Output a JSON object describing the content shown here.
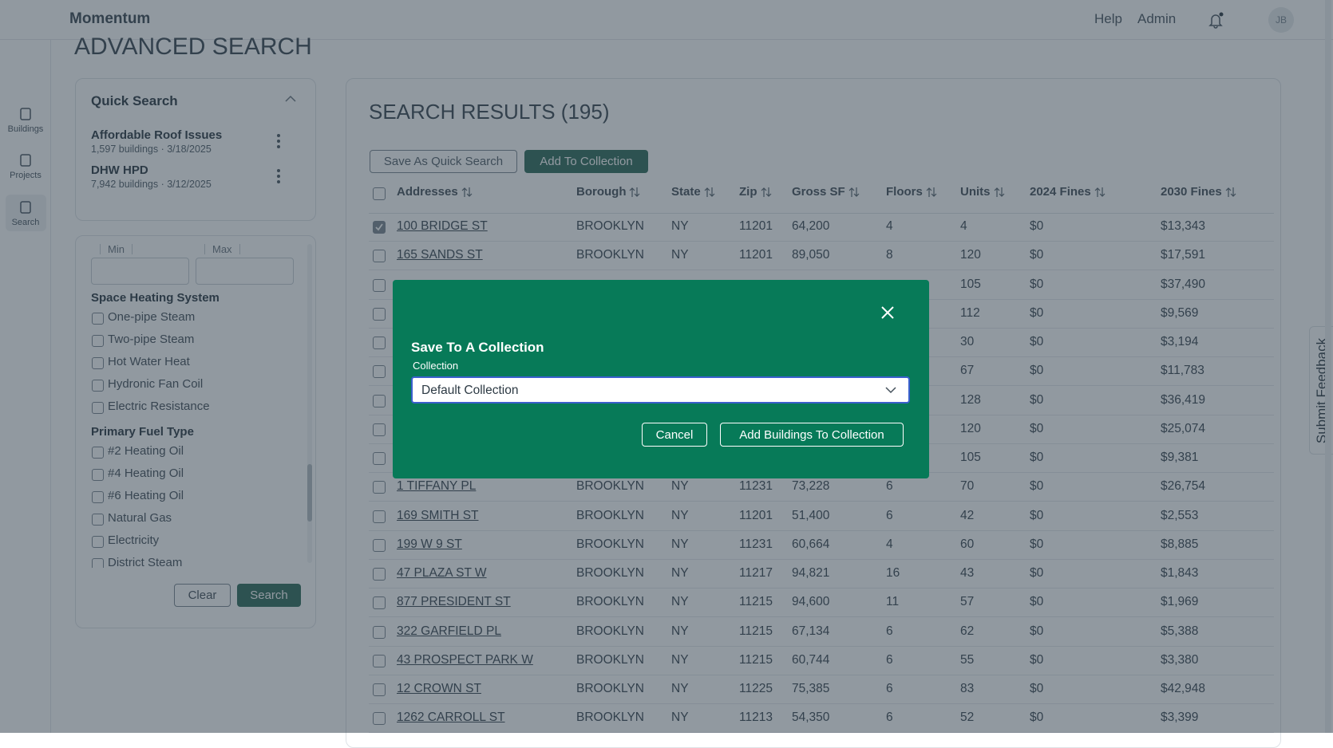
{
  "header": {
    "brand": "Momentum",
    "links": [
      "Help",
      "Admin"
    ],
    "avatar": "JB"
  },
  "sidebar": [
    "Buildings",
    "Projects",
    "Search"
  ],
  "page_title": "ADVANCED SEARCH",
  "quick_search": {
    "title": "Quick Search",
    "items": [
      {
        "name": "Affordable Roof Issues",
        "meta": "1,597 buildings · 3/18/2025"
      },
      {
        "name": "DHW HPD",
        "meta": "7,942 buildings · 3/12/2025"
      }
    ]
  },
  "filters": {
    "min": "Min",
    "max": "Max",
    "groups": [
      {
        "title": "Space Heating System",
        "options": [
          "One-pipe Steam",
          "Two-pipe Steam",
          "Hot Water Heat",
          "Hydronic Fan Coil",
          "Electric Resistance"
        ]
      },
      {
        "title": "Primary Fuel Type",
        "options": [
          "#2 Heating Oil",
          "#4 Heating Oil",
          "#6 Heating Oil",
          "Natural Gas",
          "Electricity",
          "District Steam"
        ]
      }
    ],
    "clear": "Clear",
    "search": "Search"
  },
  "results": {
    "title": "SEARCH RESULTS (195)",
    "buttons": [
      "Save As Quick Search",
      "Add To Collection"
    ],
    "columns": [
      "Addresses",
      "Borough",
      "State",
      "Zip",
      "Gross SF",
      "Floors",
      "Units",
      "2024 Fines",
      "2030 Fines"
    ],
    "rows": [
      {
        "cells": [
          "100 BRIDGE ST",
          "BROOKLYN",
          "NY",
          "11201",
          "64,200",
          "4",
          "4",
          "$0",
          "$13,343"
        ],
        "selected": true
      },
      {
        "cells": [
          "165 SANDS ST",
          "BROOKLYN",
          "NY",
          "11201",
          "89,050",
          "8",
          "120",
          "$0",
          "$17,591"
        ],
        "selected": false
      },
      {
        "cells": [
          null,
          null,
          null,
          null,
          null,
          null,
          "105",
          "$0",
          "$37,490"
        ],
        "selected": false
      },
      {
        "cells": [
          null,
          null,
          null,
          null,
          null,
          null,
          "112",
          "$0",
          "$9,569"
        ],
        "selected": false
      },
      {
        "cells": [
          null,
          null,
          null,
          null,
          null,
          null,
          "30",
          "$0",
          "$3,194"
        ],
        "selected": false
      },
      {
        "cells": [
          null,
          null,
          null,
          null,
          null,
          null,
          "67",
          "$0",
          "$11,783"
        ],
        "selected": false
      },
      {
        "cells": [
          null,
          null,
          null,
          null,
          null,
          null,
          "128",
          "$0",
          "$36,419"
        ],
        "selected": false
      },
      {
        "cells": [
          null,
          null,
          null,
          null,
          null,
          null,
          "120",
          "$0",
          "$25,074"
        ],
        "selected": false
      },
      {
        "cells": [
          null,
          null,
          null,
          null,
          null,
          null,
          "105",
          "$0",
          "$9,381"
        ],
        "selected": false
      },
      {
        "cells": [
          "1 TIFFANY PL",
          "BROOKLYN",
          "NY",
          "11231",
          "73,228",
          "6",
          "70",
          "$0",
          "$26,754"
        ],
        "selected": false
      },
      {
        "cells": [
          "169 SMITH ST",
          "BROOKLYN",
          "NY",
          "11201",
          "51,400",
          "6",
          "42",
          "$0",
          "$2,553"
        ],
        "selected": false
      },
      {
        "cells": [
          "199 W 9 ST",
          "BROOKLYN",
          "NY",
          "11231",
          "60,664",
          "4",
          "60",
          "$0",
          "$8,885"
        ],
        "selected": false
      },
      {
        "cells": [
          "47 PLAZA ST W",
          "BROOKLYN",
          "NY",
          "11217",
          "94,821",
          "16",
          "43",
          "$0",
          "$1,843"
        ],
        "selected": false
      },
      {
        "cells": [
          "877 PRESIDENT ST",
          "BROOKLYN",
          "NY",
          "11215",
          "94,600",
          "11",
          "57",
          "$0",
          "$1,969"
        ],
        "selected": false
      },
      {
        "cells": [
          "322 GARFIELD PL",
          "BROOKLYN",
          "NY",
          "11215",
          "67,134",
          "6",
          "62",
          "$0",
          "$5,388"
        ],
        "selected": false
      },
      {
        "cells": [
          "43 PROSPECT PARK W",
          "BROOKLYN",
          "NY",
          "11215",
          "60,744",
          "6",
          "55",
          "$0",
          "$3,380"
        ],
        "selected": false
      },
      {
        "cells": [
          "12 CROWN ST",
          "BROOKLYN",
          "NY",
          "11225",
          "75,385",
          "6",
          "83",
          "$0",
          "$42,948"
        ],
        "selected": false
      },
      {
        "cells": [
          "1262 CARROLL ST",
          "BROOKLYN",
          "NY",
          "11213",
          "54,350",
          "6",
          "52",
          "$0",
          "$3,399"
        ],
        "selected": false
      }
    ]
  },
  "modal": {
    "title": "Save To A Collection",
    "label": "Collection",
    "value": "Default Collection",
    "cancel": "Cancel",
    "confirm": "Add Buildings To Collection"
  },
  "feedback": "Submit Feedback"
}
